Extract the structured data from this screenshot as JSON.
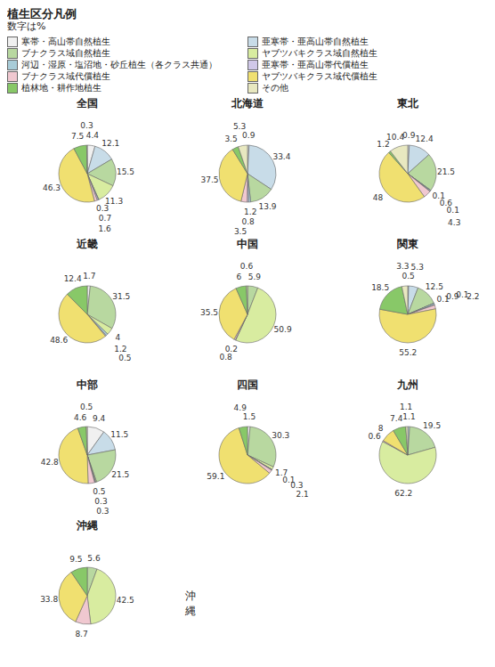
{
  "title": "植生区分凡例",
  "subtitle": "数字は%",
  "legend": "top",
  "chart_data": [
    {
      "type": "pie",
      "title": "全国",
      "categories": [
        "寒帯・高山帯自然植生",
        "亜寒帯・亜高山帯自然植生",
        "ブナクラス域自然植生",
        "ヤブツバキクラス域自然植生",
        "河辺・湿原・塩沼地・砂丘植生（各クラス共通）",
        "亜寒帯・亜高山帯代償植生",
        "ブナクラス域代償植生",
        "ヤブツバキクラス域代償植生",
        "植林地・耕作地植生",
        "その他"
      ],
      "values": [
        4.4,
        12.1,
        15.5,
        11.3,
        0.3,
        0.7,
        1.6,
        46.3,
        7.5,
        0.3
      ],
      "colors": [
        "#f0f0f0",
        "#c8dce8",
        "#b8d8a0",
        "#d8eca0",
        "#a8ccd8",
        "#d0c8e8",
        "#f0c8d0",
        "#f0e070",
        "#88c868",
        "#e8e8c0"
      ],
      "data_labels": true
    },
    {
      "type": "pie",
      "title": "北海道",
      "categories": [
        "寒帯・高山帯自然植生",
        "亜寒帯・亜高山帯自然植生",
        "ブナクラス域自然植生",
        "ヤブツバキクラス域自然植生",
        "河辺・湿原・塩沼地・砂丘植生（各クラス共通）",
        "亜寒帯・亜高山帯代償植生",
        "ブナクラス域代償植生",
        "ヤブツバキクラス域代償植生",
        "植林地・耕作地植生",
        "その他"
      ],
      "values": [
        0.9,
        33.4,
        13.9,
        0.0,
        1.2,
        0.8,
        3.5,
        37.5,
        3.5,
        5.3
      ],
      "colors": [
        "#f0f0f0",
        "#c8dce8",
        "#b8d8a0",
        "#d8eca0",
        "#a8ccd8",
        "#d0c8e8",
        "#f0c8d0",
        "#f0e070",
        "#88c868",
        "#e8e8c0"
      ],
      "data_labels": true
    },
    {
      "type": "pie",
      "title": "東北",
      "categories": [
        "寒帯・高山帯自然植生",
        "亜寒帯・亜高山帯自然植生",
        "ブナクラス域自然植生",
        "ヤブツバキクラス域自然植生",
        "河辺・湿原・塩沼地・砂丘植生（各クラス共通）",
        "亜寒帯・亜高山帯代償植生",
        "ブナクラス域代償植生",
        "ヤブツバキクラス域代償植生",
        "植林地・耕作地植生",
        "その他"
      ],
      "values": [
        0.9,
        12.4,
        21.5,
        0.1,
        0.6,
        0.1,
        4.3,
        48.0,
        1.2,
        10.4
      ],
      "colors": [
        "#f0f0f0",
        "#c8dce8",
        "#b8d8a0",
        "#d8eca0",
        "#a8ccd8",
        "#d0c8e8",
        "#f0c8d0",
        "#f0e070",
        "#88c868",
        "#e8e8c0"
      ],
      "data_labels": true
    },
    {
      "type": "pie",
      "title": "近畿",
      "categories": [
        "寒帯・高山帯自然植生",
        "亜寒帯・亜高山帯自然植生",
        "ブナクラス域自然植生",
        "ヤブツバキクラス域自然植生",
        "河辺・湿原・塩沼地・砂丘植生（各クラス共通）",
        "亜寒帯・亜高山帯代償植生",
        "ブナクラス域代償植生",
        "ヤブツバキクラス域代償植生",
        "植林地・耕作地植生",
        "その他"
      ],
      "values": [
        1.7,
        0.0,
        31.5,
        4,
        1.2,
        0.5,
        0.0,
        48.6,
        12.4,
        0.0
      ],
      "colors": [
        "#f0f0f0",
        "#c8dce8",
        "#b8d8a0",
        "#d8eca0",
        "#a8ccd8",
        "#d0c8e8",
        "#f0c8d0",
        "#f0e070",
        "#88c868",
        "#e8e8c0"
      ],
      "data_labels": true
    },
    {
      "type": "pie",
      "title": "中国",
      "categories": [
        "寒帯・高山帯自然植生",
        "亜寒帯・亜高山帯自然植生",
        "ブナクラス域自然植生",
        "ヤブツバキクラス域自然植生",
        "河辺・湿原・塩沼地・砂丘植生（各クラス共通）",
        "亜寒帯・亜高山帯代償植生",
        "ブナクラス域代償植生",
        "ヤブツバキクラス域代償植生",
        "植林地・耕作地植生",
        "その他"
      ],
      "values": [
        0.0,
        0.0,
        5.9,
        50.9,
        0.0,
        0.2,
        0.8,
        35.5,
        6.0,
        0.6
      ],
      "colors": [
        "#f0f0f0",
        "#c8dce8",
        "#b8d8a0",
        "#d8eca0",
        "#a8ccd8",
        "#d0c8e8",
        "#f0c8d0",
        "#f0e070",
        "#88c868",
        "#e8e8c0"
      ],
      "data_labels": true
    },
    {
      "type": "pie",
      "title": "関東",
      "categories": [
        "寒帯・高山帯自然植生",
        "亜寒帯・亜高山帯自然植生",
        "ブナクラス域自然植生",
        "ヤブツバキクラス域自然植生",
        "河辺・湿原・塩沼地・砂丘植生（各クラス共通）",
        "亜寒帯・亜高山帯代償植生",
        "ブナクラス域代償植生",
        "ヤブツバキクラス域代償植生",
        "植林地・耕作地植生",
        "その他"
      ],
      "values": [
        0.5,
        5.3,
        12.5,
        0.1,
        0.9,
        0.1,
        2.2,
        55.2,
        18.5,
        3.3
      ],
      "colors": [
        "#f0f0f0",
        "#c8dce8",
        "#b8d8a0",
        "#d8eca0",
        "#a8ccd8",
        "#d0c8e8",
        "#f0c8d0",
        "#f0e070",
        "#88c868",
        "#e8e8c0"
      ],
      "data_labels": true
    },
    {
      "type": "pie",
      "title": "中部",
      "categories": [
        "寒帯・高山帯自然植生",
        "亜寒帯・亜高山帯自然植生",
        "ブナクラス域自然植生",
        "ヤブツバキクラス域自然植生",
        "河辺・湿原・塩沼地・砂丘植生（各クラス共通）",
        "亜寒帯・亜高山帯代償植生",
        "ブナクラス域代償植生",
        "ヤブツバキクラス域代償植生",
        "植林地・耕作地植生",
        "その他"
      ],
      "values": [
        9.4,
        11.5,
        21.5,
        0.5,
        0.3,
        0.3,
        3.5,
        42.8,
        4.6,
        0.5
      ],
      "colors": [
        "#f0f0f0",
        "#c8dce8",
        "#b8d8a0",
        "#d8eca0",
        "#a8ccd8",
        "#d0c8e8",
        "#f0c8d0",
        "#f0e070",
        "#88c868",
        "#e8e8c0"
      ],
      "data_labels": true
    },
    {
      "type": "pie",
      "title": "四国",
      "categories": [
        "寒帯・高山帯自然植生",
        "亜寒帯・亜高山帯自然植生",
        "ブナクラス域自然植生",
        "ヤブツバキクラス域自然植生",
        "河辺・湿原・塩沼地・砂丘植生（各クラス共通）",
        "亜寒帯・亜高山帯代償植生",
        "ブナクラス域代償植生",
        "ヤブツバキクラス域代償植生",
        "植林地・耕作地植生",
        "その他"
      ],
      "values": [
        1.5,
        0.0,
        30.3,
        1.7,
        0.1,
        0.3,
        2.1,
        59.1,
        4.9,
        0.0
      ],
      "colors": [
        "#f0f0f0",
        "#c8dce8",
        "#b8d8a0",
        "#d8eca0",
        "#a8ccd8",
        "#d0c8e8",
        "#f0c8d0",
        "#f0e070",
        "#88c868",
        "#e8e8c0"
      ],
      "data_labels": true
    },
    {
      "type": "pie",
      "title": "九州",
      "categories": [
        "寒帯・高山帯自然植生",
        "亜寒帯・亜高山帯自然植生",
        "ブナクラス域自然植生",
        "ヤブツバキクラス域自然植生",
        "河辺・湿原・塩沼地・砂丘植生（各クラス共通）",
        "亜寒帯・亜高山帯代償植生",
        "ブナクラス域代償植生",
        "ヤブツバキクラス域代償植生",
        "植林地・耕作地植生",
        "その他"
      ],
      "values": [
        0.0,
        1.1,
        19.5,
        62.2,
        0.0,
        0.0,
        0.6,
        8.0,
        7.4,
        1.1
      ],
      "colors": [
        "#f0f0f0",
        "#c8dce8",
        "#b8d8a0",
        "#d8eca0",
        "#a8ccd8",
        "#d0c8e8",
        "#f0c8d0",
        "#f0e070",
        "#88c868",
        "#e8e8c0"
      ],
      "data_labels": true
    },
    {
      "type": "pie",
      "title": "沖縄",
      "annotations": [
        "沖縄"
      ],
      "categories": [
        "寒帯・高山帯自然植生",
        "亜寒帯・亜高山帯自然植生",
        "ブナクラス域自然植生",
        "ヤブツバキクラス域自然植生",
        "河辺・湿原・塩沼地・砂丘植生（各クラス共通）",
        "亜寒帯・亜高山帯代償植生",
        "ブナクラス域代償植生",
        "ヤブツバキクラス域代償植生",
        "植林地・耕作地植生",
        "その他"
      ],
      "values": [
        0.0,
        0.0,
        5.6,
        42.5,
        0.0,
        0.0,
        8.7,
        33.8,
        9.5,
        0.0
      ],
      "colors": [
        "#f0f0f0",
        "#c8dce8",
        "#b8d8a0",
        "#d8eca0",
        "#a8ccd8",
        "#d0c8e8",
        "#f0c8d0",
        "#f0e070",
        "#88c868",
        "#e8e8c0"
      ],
      "data_labels": true
    }
  ]
}
